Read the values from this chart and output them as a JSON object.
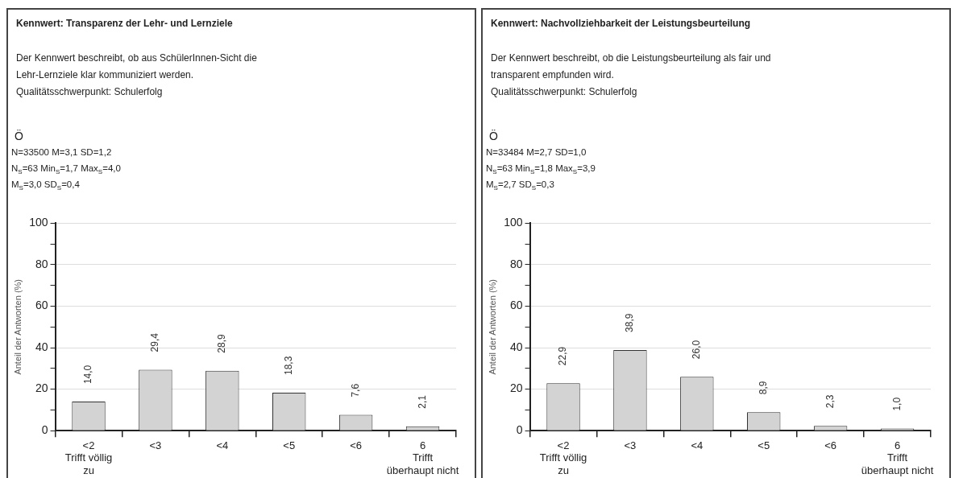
{
  "chart_data": [
    {
      "type": "bar",
      "title": "Kennwert: Transparenz der Lehr- und Lernziele",
      "subtitle": "Der Kennwert beschreibt, ob aus SchülerInnen-Sicht die\nLehr-Lernziele klar kommuniziert werden.\nQualitätsschwerpunkt: Schulerfolg",
      "annotations": [
        "Ö",
        "N=33500 M=3,1 SD=1,2",
        "N$_{S}$=63 Min$_{S}$=1,7 Max$_{S}$=4,0",
        "M$_{S}$=3,0 SD$_{S}$=0,4"
      ],
      "ylabel": "Anteil der Antworten (%)",
      "categories": [
        "<2\nTrifft völlig\nzu",
        "<3",
        "<4",
        "<5",
        "<6",
        "6\nTrifft\nüberhaupt nicht"
      ],
      "values": [
        14.0,
        29.4,
        28.9,
        18.3,
        7.6,
        2.1
      ],
      "value_labels": [
        "14,0",
        "29,4",
        "28,9",
        "18,3",
        "7,6",
        "2,1"
      ],
      "color": "#d3d3d3",
      "ylim": [
        0,
        100
      ],
      "yticks": [
        0,
        {
          "value": 10,
          "label": null
        },
        20,
        {
          "value": 30,
          "label": null
        },
        40,
        {
          "value": 50,
          "label": null
        },
        60,
        {
          "value": 70,
          "label": null
        },
        80,
        {
          "value": 90,
          "label": null
        },
        100
      ],
      "grid": "y",
      "legend": false
    },
    {
      "type": "bar",
      "title": "Kennwert: Nachvollziehbarkeit der Leistungsbeurteilung",
      "subtitle": "Der Kennwert beschreibt, ob die Leistungsbeurteilung als fair und\ntransparent empfunden wird.\nQualitätsschwerpunkt: Schulerfolg",
      "annotations": [
        "Ö",
        "N=33484 M=2,7 SD=1,0",
        "N$_{S}$=63 Min$_{S}$=1,8 Max$_{S}$=3,9",
        "M$_{S}$=2,7 SD$_{S}$=0,3"
      ],
      "ylabel": "Anteil der Antworten (%)",
      "categories": [
        "<2\nTrifft völlig\nzu",
        "<3",
        "<4",
        "<5",
        "<6",
        "6\nTrifft\nüberhaupt nicht"
      ],
      "values": [
        22.9,
        38.9,
        26.0,
        8.9,
        2.3,
        1.0
      ],
      "value_labels": [
        "22,9",
        "38,9",
        "26,0",
        "8,9",
        "2,3",
        "1,0"
      ],
      "color": "#d3d3d3",
      "ylim": [
        0,
        100
      ],
      "yticks": [
        0,
        {
          "value": 10,
          "label": null
        },
        20,
        {
          "value": 30,
          "label": null
        },
        40,
        {
          "value": 50,
          "label": null
        },
        60,
        {
          "value": 70,
          "label": null
        },
        80,
        {
          "value": 90,
          "label": null
        },
        100
      ],
      "grid": "y",
      "legend": false
    }
  ]
}
